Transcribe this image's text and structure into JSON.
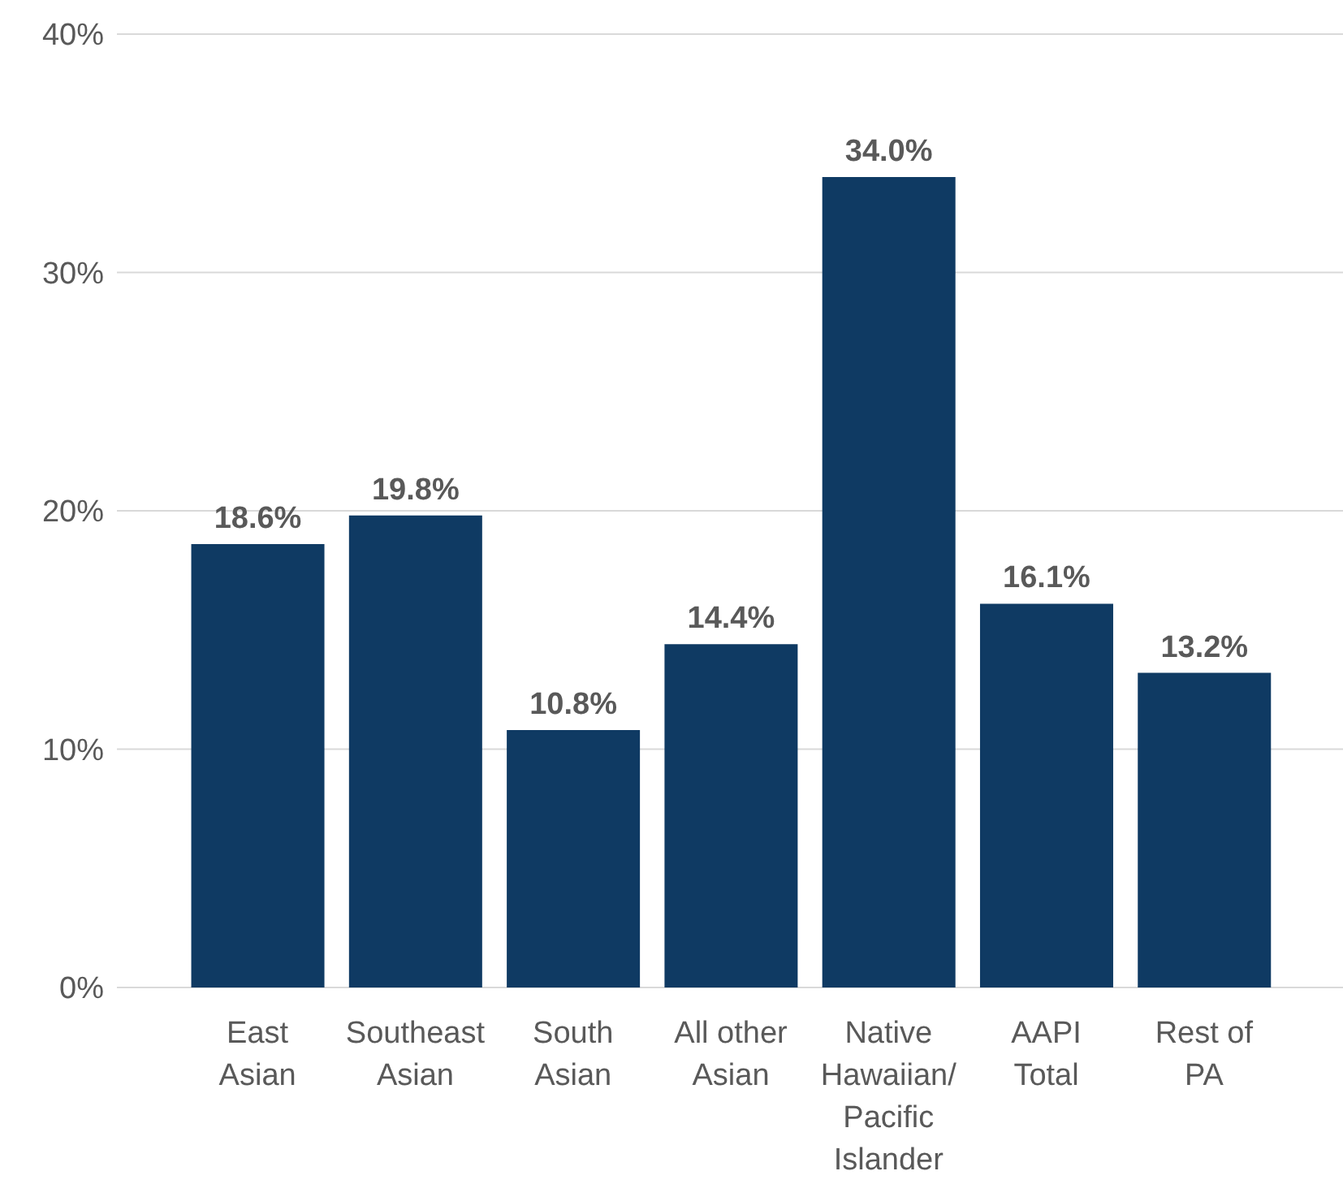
{
  "chart_data": {
    "type": "bar",
    "categories": [
      "East Asian",
      "Southeast Asian",
      "South Asian",
      "All other Asian",
      "Native Hawaiian/ Pacific Islander",
      "AAPI Total",
      "Rest of PA"
    ],
    "values": [
      18.6,
      19.8,
      10.8,
      14.4,
      34.0,
      16.1,
      13.2
    ],
    "value_labels": [
      "18.6%",
      "19.8%",
      "10.8%",
      "14.4%",
      "34.0%",
      "16.1%",
      "13.2%"
    ],
    "color": "#0f3a63",
    "ylim": [
      0,
      40
    ],
    "yticks": [
      {
        "value": 0,
        "label": "0%"
      },
      {
        "value": 10,
        "label": "10%"
      },
      {
        "value": 20,
        "label": "20%"
      },
      {
        "value": 30,
        "label": "30%"
      },
      {
        "value": 40,
        "label": "40%"
      }
    ],
    "grid": "y"
  }
}
